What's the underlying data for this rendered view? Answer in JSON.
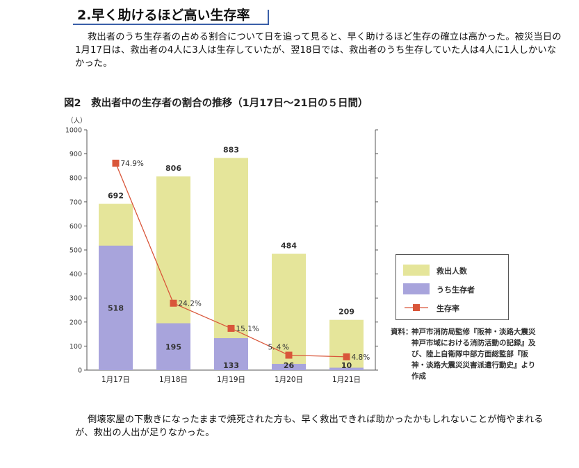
{
  "heading": "2.早く助けるほど高い生存率",
  "intro_text": "救出者のうち生存者の占める割合について日を追って見ると、早く助けるほど生存の確立は高かった。被災当日の1月17日は、救出者の4人に3人は生存していたが、翌18日では、救出者のうち生存していた人は4人に1人しかいなかった。",
  "outro_text": "倒壊家屋の下敷きになったままで焼死された方も、早く救出できれば助かったかもしれないことが悔やまれるが、救出の人出が足りなかった。",
  "chart_title": "図2　救出者中の生存者の割合の推移（1月17日～21日の５日間）",
  "chart_data": {
    "type": "bar",
    "categories": [
      "1月17日",
      "1月18日",
      "1月19日",
      "1月20日",
      "1月21日"
    ],
    "series": [
      {
        "name": "救出人数",
        "values": [
          692,
          806,
          883,
          484,
          209
        ],
        "color": "#e5e59a"
      },
      {
        "name": "うち生存者",
        "values": [
          518,
          195,
          133,
          26,
          10
        ],
        "color": "#a8a4dc"
      },
      {
        "name": "生存率",
        "values": [
          74.9,
          24.2,
          15.1,
          5.4,
          4.8
        ],
        "labels": [
          "74.9%",
          "24.2%",
          "15.1%",
          "5.４%",
          "4.8%"
        ],
        "color": "#d9563a"
      }
    ],
    "ylabel": "（人）",
    "ylim": [
      0,
      1000
    ],
    "yticks": [
      "0",
      "100",
      "200",
      "300",
      "400",
      "500",
      "600",
      "700",
      "800",
      "900",
      "1000"
    ],
    "legend_position": "right"
  },
  "source_label": "資料：",
  "source_text": "神戸市消防局監修『阪神・淡路大震災神戸市域における消防活動の記録』及び、陸上自衛隊中部方面総監部『阪神・淡路大震災災害派遣行動史』より作成"
}
